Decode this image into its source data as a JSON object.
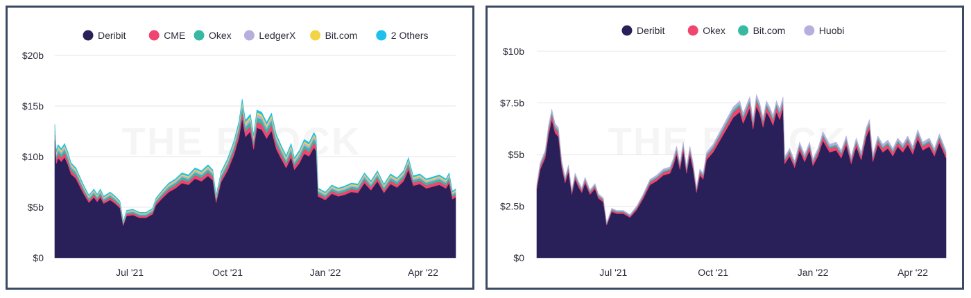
{
  "watermark": "THE BLOCK",
  "chart_data": [
    {
      "type": "area",
      "stacked": true,
      "title": "",
      "ylim": [
        0,
        20
      ],
      "y_ticks": [
        {
          "value": 0,
          "label": "$0"
        },
        {
          "value": 5,
          "label": "$5b"
        },
        {
          "value": 10,
          "label": "$10b"
        },
        {
          "value": 15,
          "label": "$15b"
        },
        {
          "value": 20,
          "label": "$20b"
        }
      ],
      "x_ticks": [
        {
          "t": 2,
          "label": "Jul '21"
        },
        {
          "t": 5,
          "label": "Oct '21"
        },
        {
          "t": 8,
          "label": "Jan '22"
        },
        {
          "t": 11,
          "label": "Apr '22"
        }
      ],
      "xlim": [
        -0.3,
        12.0
      ],
      "series": [
        {
          "name": "Deribit",
          "color": "#2a2059"
        },
        {
          "name": "CME",
          "color": "#f0456e"
        },
        {
          "name": "Okex",
          "color": "#37b8a3"
        },
        {
          "name": "LedgerX",
          "color": "#b8aede"
        },
        {
          "name": "Bit.com",
          "color": "#f2d446"
        },
        {
          "name": "2 Others",
          "color": "#1ec0ec"
        }
      ],
      "shares": [
        0.88,
        0.04,
        0.03,
        0.02,
        0.015,
        0.015
      ],
      "total": [
        [
          -0.3,
          13.2
        ],
        [
          -0.25,
          10.6
        ],
        [
          -0.2,
          11.2
        ],
        [
          -0.1,
          10.8
        ],
        [
          0.0,
          11.3
        ],
        [
          0.1,
          10.5
        ],
        [
          0.2,
          9.4
        ],
        [
          0.35,
          8.9
        ],
        [
          0.5,
          7.8
        ],
        [
          0.6,
          7.1
        ],
        [
          0.75,
          6.2
        ],
        [
          0.9,
          6.8
        ],
        [
          1.0,
          6.3
        ],
        [
          1.1,
          6.8
        ],
        [
          1.2,
          6.1
        ],
        [
          1.4,
          6.5
        ],
        [
          1.55,
          6.1
        ],
        [
          1.7,
          5.6
        ],
        [
          1.8,
          3.6
        ],
        [
          1.9,
          4.7
        ],
        [
          2.1,
          4.8
        ],
        [
          2.3,
          4.5
        ],
        [
          2.5,
          4.5
        ],
        [
          2.7,
          4.9
        ],
        [
          2.8,
          5.9
        ],
        [
          3.0,
          6.7
        ],
        [
          3.2,
          7.4
        ],
        [
          3.4,
          7.8
        ],
        [
          3.6,
          8.4
        ],
        [
          3.8,
          8.2
        ],
        [
          4.0,
          8.9
        ],
        [
          4.2,
          8.6
        ],
        [
          4.4,
          9.2
        ],
        [
          4.55,
          8.7
        ],
        [
          4.65,
          6.2
        ],
        [
          4.8,
          8.5
        ],
        [
          5.0,
          9.8
        ],
        [
          5.2,
          11.6
        ],
        [
          5.35,
          13.5
        ],
        [
          5.45,
          15.7
        ],
        [
          5.55,
          13.6
        ],
        [
          5.7,
          14.2
        ],
        [
          5.8,
          12.2
        ],
        [
          5.9,
          14.6
        ],
        [
          6.05,
          14.4
        ],
        [
          6.2,
          13.4
        ],
        [
          6.35,
          14.3
        ],
        [
          6.5,
          12.2
        ],
        [
          6.65,
          11.1
        ],
        [
          6.8,
          10.1
        ],
        [
          6.95,
          11.3
        ],
        [
          7.05,
          9.9
        ],
        [
          7.2,
          10.6
        ],
        [
          7.35,
          11.7
        ],
        [
          7.5,
          11.4
        ],
        [
          7.65,
          12.4
        ],
        [
          7.72,
          12.0
        ],
        [
          7.78,
          6.9
        ],
        [
          8.0,
          6.5
        ],
        [
          8.2,
          7.2
        ],
        [
          8.4,
          6.9
        ],
        [
          8.6,
          7.1
        ],
        [
          8.8,
          7.4
        ],
        [
          9.0,
          7.3
        ],
        [
          9.2,
          8.4
        ],
        [
          9.4,
          7.6
        ],
        [
          9.6,
          8.6
        ],
        [
          9.8,
          7.3
        ],
        [
          10.0,
          8.3
        ],
        [
          10.2,
          7.9
        ],
        [
          10.4,
          8.6
        ],
        [
          10.55,
          9.9
        ],
        [
          10.7,
          8.1
        ],
        [
          10.9,
          8.3
        ],
        [
          11.1,
          7.8
        ],
        [
          11.3,
          8.0
        ],
        [
          11.5,
          8.2
        ],
        [
          11.7,
          7.8
        ],
        [
          11.8,
          8.4
        ],
        [
          11.9,
          6.6
        ],
        [
          12.0,
          6.8
        ]
      ]
    },
    {
      "type": "area",
      "stacked": true,
      "title": "",
      "ylim": [
        0,
        10
      ],
      "y_ticks": [
        {
          "value": 0,
          "label": "$0"
        },
        {
          "value": 2.5,
          "label": "$2.5b"
        },
        {
          "value": 5,
          "label": "$5b"
        },
        {
          "value": 7.5,
          "label": "$7.5b"
        },
        {
          "value": 10,
          "label": "$10b"
        }
      ],
      "x_ticks": [
        {
          "t": 2,
          "label": "Jul '21"
        },
        {
          "t": 5,
          "label": "Oct '21"
        },
        {
          "t": 8,
          "label": "Jan '22"
        },
        {
          "t": 11,
          "label": "Apr '22"
        }
      ],
      "xlim": [
        -0.3,
        12.0
      ],
      "series": [
        {
          "name": "Deribit",
          "color": "#2a2059"
        },
        {
          "name": "Okex",
          "color": "#f0456e"
        },
        {
          "name": "Bit.com",
          "color": "#37b8a3"
        },
        {
          "name": "Huobi",
          "color": "#b8aede"
        }
      ],
      "shares": [
        0.93,
        0.035,
        0.015,
        0.02
      ],
      "total": [
        [
          -0.3,
          3.6
        ],
        [
          -0.2,
          4.6
        ],
        [
          -0.05,
          5.2
        ],
        [
          0.05,
          6.4
        ],
        [
          0.15,
          7.2
        ],
        [
          0.25,
          6.5
        ],
        [
          0.35,
          6.3
        ],
        [
          0.45,
          4.7
        ],
        [
          0.55,
          3.9
        ],
        [
          0.65,
          4.5
        ],
        [
          0.75,
          3.3
        ],
        [
          0.85,
          4.1
        ],
        [
          0.95,
          3.7
        ],
        [
          1.05,
          3.4
        ],
        [
          1.15,
          3.9
        ],
        [
          1.3,
          3.3
        ],
        [
          1.45,
          3.6
        ],
        [
          1.55,
          3.1
        ],
        [
          1.7,
          2.9
        ],
        [
          1.8,
          1.7
        ],
        [
          1.95,
          2.4
        ],
        [
          2.1,
          2.3
        ],
        [
          2.3,
          2.3
        ],
        [
          2.5,
          2.1
        ],
        [
          2.7,
          2.5
        ],
        [
          2.9,
          3.1
        ],
        [
          3.1,
          3.8
        ],
        [
          3.3,
          4.0
        ],
        [
          3.5,
          4.3
        ],
        [
          3.7,
          4.4
        ],
        [
          3.8,
          4.8
        ],
        [
          3.9,
          5.4
        ],
        [
          4.0,
          4.6
        ],
        [
          4.1,
          5.6
        ],
        [
          4.2,
          4.4
        ],
        [
          4.3,
          5.4
        ],
        [
          4.4,
          4.6
        ],
        [
          4.5,
          3.4
        ],
        [
          4.6,
          4.3
        ],
        [
          4.7,
          4.1
        ],
        [
          4.8,
          5.1
        ],
        [
          5.0,
          5.5
        ],
        [
          5.2,
          6.1
        ],
        [
          5.4,
          6.7
        ],
        [
          5.6,
          7.3
        ],
        [
          5.8,
          7.6
        ],
        [
          5.9,
          7.0
        ],
        [
          6.0,
          7.4
        ],
        [
          6.1,
          7.8
        ],
        [
          6.2,
          6.7
        ],
        [
          6.3,
          7.9
        ],
        [
          6.4,
          7.5
        ],
        [
          6.5,
          6.8
        ],
        [
          6.6,
          7.6
        ],
        [
          6.7,
          7.3
        ],
        [
          6.8,
          6.9
        ],
        [
          6.9,
          7.6
        ],
        [
          7.0,
          7.2
        ],
        [
          7.1,
          7.8
        ],
        [
          7.15,
          4.9
        ],
        [
          7.3,
          5.3
        ],
        [
          7.45,
          4.7
        ],
        [
          7.6,
          5.6
        ],
        [
          7.75,
          5.0
        ],
        [
          7.9,
          5.6
        ],
        [
          8.0,
          4.8
        ],
        [
          8.15,
          5.3
        ],
        [
          8.3,
          6.1
        ],
        [
          8.5,
          5.5
        ],
        [
          8.7,
          5.6
        ],
        [
          8.85,
          5.2
        ],
        [
          9.0,
          5.9
        ],
        [
          9.15,
          4.9
        ],
        [
          9.3,
          5.8
        ],
        [
          9.45,
          5.1
        ],
        [
          9.6,
          6.3
        ],
        [
          9.7,
          6.7
        ],
        [
          9.8,
          5.0
        ],
        [
          9.95,
          5.9
        ],
        [
          10.1,
          5.5
        ],
        [
          10.25,
          5.7
        ],
        [
          10.4,
          5.3
        ],
        [
          10.55,
          5.8
        ],
        [
          10.7,
          5.5
        ],
        [
          10.85,
          5.9
        ],
        [
          11.0,
          5.4
        ],
        [
          11.15,
          6.2
        ],
        [
          11.3,
          5.6
        ],
        [
          11.5,
          5.8
        ],
        [
          11.65,
          5.3
        ],
        [
          11.8,
          6.0
        ],
        [
          11.9,
          5.6
        ],
        [
          12.0,
          5.2
        ]
      ]
    }
  ]
}
